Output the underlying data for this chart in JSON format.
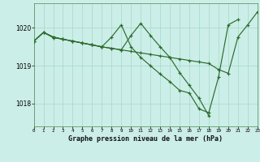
{
  "title": "Graphe pression niveau de la mer (hPa)",
  "bg_color": "#cceee8",
  "grid_color": "#aaddcc",
  "line_color": "#2d6b2d",
  "xlim": [
    0,
    23
  ],
  "ylim": [
    1017.4,
    1020.65
  ],
  "xticks": [
    0,
    1,
    2,
    3,
    4,
    5,
    6,
    7,
    8,
    9,
    10,
    11,
    12,
    13,
    14,
    15,
    16,
    17,
    18,
    19,
    20,
    21,
    22,
    23
  ],
  "yticks": [
    1018,
    1019,
    1020
  ],
  "series": [
    {
      "x": [
        0,
        1,
        2,
        3,
        4,
        5,
        6,
        7,
        8,
        9,
        10,
        11,
        12,
        13,
        14,
        15,
        16,
        17,
        18,
        19,
        20,
        21,
        22,
        23
      ],
      "y": [
        1019.65,
        1019.88,
        1019.76,
        1019.7,
        1019.65,
        1019.6,
        1019.55,
        1019.5,
        1019.46,
        1019.42,
        1019.38,
        1019.34,
        1019.3,
        1019.26,
        1019.22,
        1019.18,
        1019.14,
        1019.1,
        1019.06,
        1018.9,
        1018.8,
        1019.76,
        1020.08,
        1020.42
      ]
    },
    {
      "x": [
        0,
        1,
        2,
        3,
        4,
        5,
        6,
        7,
        8,
        9,
        10,
        11,
        12,
        13,
        14,
        15,
        16,
        17,
        18,
        19,
        20,
        21
      ],
      "y": [
        1019.65,
        1019.88,
        1019.76,
        1019.7,
        1019.65,
        1019.6,
        1019.55,
        1019.5,
        1019.76,
        1020.08,
        1019.5,
        1019.22,
        1019.0,
        1018.78,
        1018.58,
        1018.35,
        1018.28,
        1017.86,
        1017.76,
        1018.7,
        1020.08,
        1020.22
      ]
    },
    {
      "x": [
        0,
        1,
        2,
        3,
        4,
        5,
        6,
        7,
        8,
        9,
        10,
        11,
        12,
        13,
        14,
        15,
        16,
        17,
        18
      ],
      "y": [
        1019.65,
        1019.88,
        1019.74,
        1019.7,
        1019.65,
        1019.6,
        1019.55,
        1019.5,
        1019.46,
        1019.42,
        1019.8,
        1020.12,
        1019.8,
        1019.5,
        1019.22,
        1018.82,
        1018.48,
        1018.14,
        1017.68
      ]
    }
  ]
}
